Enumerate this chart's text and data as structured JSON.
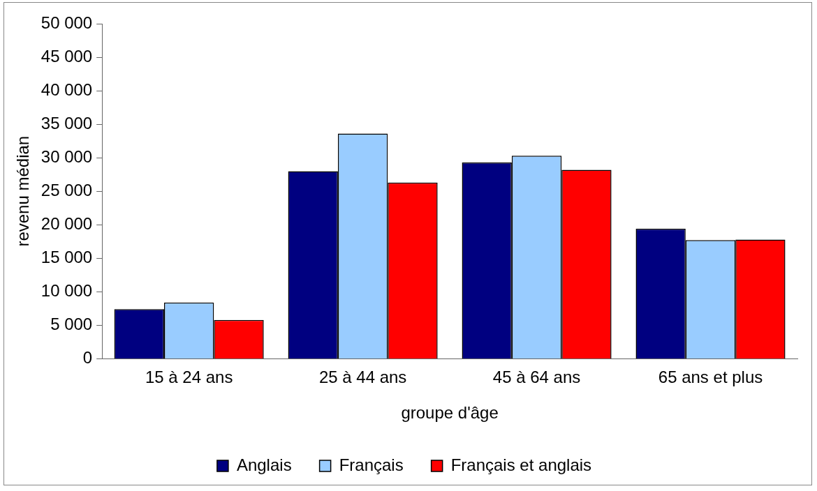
{
  "chart_data": {
    "type": "bar",
    "categories": [
      "15 à 24 ans",
      "25 à 44 ans",
      "45 à 64 ans",
      "65 ans et plus"
    ],
    "series": [
      {
        "name": "Anglais",
        "color": "#000080",
        "values": [
          7400,
          28000,
          29300,
          19400
        ]
      },
      {
        "name": "Français",
        "color": "#99ccff",
        "values": [
          8400,
          33600,
          30300,
          17700
        ]
      },
      {
        "name": "Français et anglais",
        "color": "#ff0000",
        "values": [
          5800,
          26300,
          28200,
          17800
        ]
      }
    ],
    "xlabel": "groupe d'âge",
    "ylabel": "revenu médian",
    "ylim": [
      0,
      50000
    ],
    "yticks": [
      0,
      {
        "value": 5000,
        "label": "5 000"
      },
      {
        "value": 10000,
        "label": "10 000"
      },
      {
        "value": 15000,
        "label": "15 000"
      },
      {
        "value": 20000,
        "label": "20 000"
      },
      {
        "value": 25000,
        "label": "25 000"
      },
      {
        "value": 30000,
        "label": "30 000"
      },
      {
        "value": 35000,
        "label": "35 000"
      },
      {
        "value": 40000,
        "label": "40 000"
      },
      {
        "value": 45000,
        "label": "45 000"
      },
      {
        "value": 50000,
        "label": "50 000"
      }
    ],
    "grid": false,
    "legend": "bottom"
  }
}
